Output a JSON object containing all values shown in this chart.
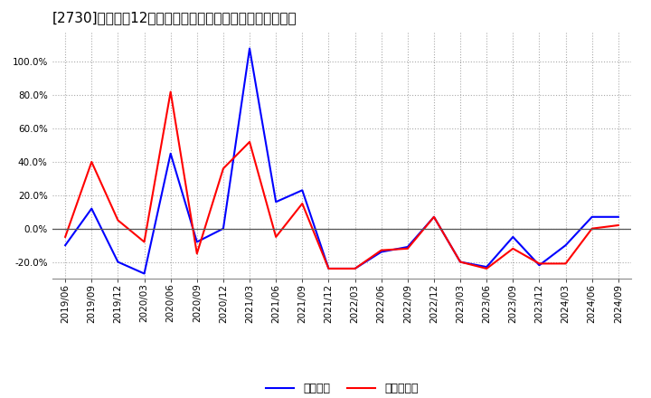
{
  "title": "[2730]　利益だ12か月移動合計の対前年同期増減率の推移",
  "background_color": "#ffffff",
  "plot_bg_color": "#ffffff",
  "grid_color": "#aaaaaa",
  "zero_line_color": "#555555",
  "x_labels": [
    "2019/06",
    "2019/09",
    "2019/12",
    "2020/03",
    "2020/06",
    "2020/09",
    "2020/12",
    "2021/03",
    "2021/06",
    "2021/09",
    "2021/12",
    "2022/03",
    "2022/06",
    "2022/09",
    "2022/12",
    "2023/03",
    "2023/06",
    "2023/09",
    "2023/12",
    "2024/03",
    "2024/06",
    "2024/09"
  ],
  "series": [
    {
      "name": "経常利益",
      "color": "#0000ff",
      "data": [
        -0.1,
        0.12,
        -0.2,
        -0.27,
        0.45,
        -0.08,
        0.0,
        1.08,
        0.16,
        0.23,
        -0.24,
        -0.24,
        -0.14,
        -0.11,
        0.07,
        -0.2,
        -0.23,
        -0.05,
        -0.22,
        -0.1,
        0.07,
        0.07
      ]
    },
    {
      "name": "当期純利益",
      "color": "#ff0000",
      "data": [
        -0.05,
        0.4,
        0.05,
        -0.08,
        0.82,
        -0.15,
        0.36,
        0.52,
        -0.05,
        0.15,
        -0.24,
        -0.24,
        -0.13,
        -0.12,
        0.07,
        -0.2,
        -0.24,
        -0.12,
        -0.21,
        -0.21,
        0.0,
        0.02
      ]
    }
  ],
  "yticks": [
    -0.2,
    0.0,
    0.2,
    0.4,
    0.6,
    0.8,
    1.0
  ],
  "ylim_min": -0.3,
  "ylim_max": 1.18,
  "title_fontsize": 11,
  "tick_fontsize": 7.5,
  "legend_fontsize": 9,
  "line_width": 1.5
}
